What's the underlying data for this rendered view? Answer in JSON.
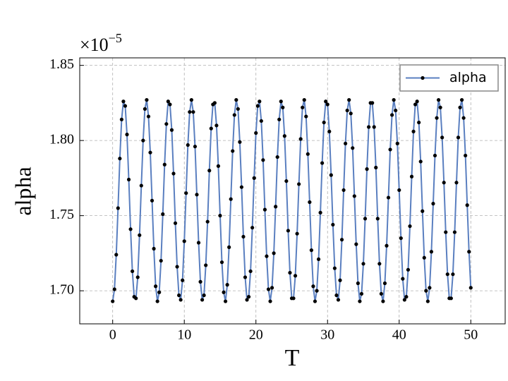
{
  "chart_data": {
    "type": "line",
    "xlabel": "T",
    "ylabel": "alpha",
    "y_offset_label": "×10",
    "y_offset_exponent": "−5",
    "x": [
      0,
      0.25,
      0.5,
      0.75,
      1,
      1.25,
      1.5,
      1.75,
      2,
      2.25,
      2.5,
      2.75,
      3,
      3.25,
      3.5,
      3.75,
      4,
      4.25,
      4.5,
      4.75,
      5,
      5.25,
      5.5,
      5.75,
      6,
      6.25,
      6.5,
      6.75,
      7,
      7.25,
      7.5,
      7.75,
      8,
      8.25,
      8.5,
      8.75,
      9,
      9.25,
      9.5,
      9.75,
      10,
      10.25,
      10.5,
      10.75,
      11,
      11.25,
      11.5,
      11.75,
      12,
      12.25,
      12.5,
      12.75,
      13,
      13.25,
      13.5,
      13.75,
      14,
      14.25,
      14.5,
      14.75,
      15,
      15.25,
      15.5,
      15.75,
      16,
      16.25,
      16.5,
      16.75,
      17,
      17.25,
      17.5,
      17.75,
      18,
      18.25,
      18.5,
      18.75,
      19,
      19.25,
      19.5,
      19.75,
      20,
      20.25,
      20.5,
      20.75,
      21,
      21.25,
      21.5,
      21.75,
      22,
      22.25,
      22.5,
      22.75,
      23,
      23.25,
      23.5,
      23.75,
      24,
      24.25,
      24.5,
      24.75,
      25,
      25.25,
      25.5,
      25.75,
      26,
      26.25,
      26.5,
      26.75,
      27,
      27.25,
      27.5,
      27.75,
      28,
      28.25,
      28.5,
      28.75,
      29,
      29.25,
      29.5,
      29.75,
      30,
      30.25,
      30.5,
      30.75,
      31,
      31.25,
      31.5,
      31.75,
      32,
      32.25,
      32.5,
      32.75,
      33,
      33.25,
      33.5,
      33.75,
      34,
      34.25,
      34.5,
      34.75,
      35,
      35.25,
      35.5,
      35.75,
      36,
      36.25,
      36.5,
      36.75,
      37,
      37.25,
      37.5,
      37.75,
      38,
      38.25,
      38.5,
      38.75,
      39,
      39.25,
      39.5,
      39.75,
      40,
      40.25,
      40.5,
      40.75,
      41,
      41.25,
      41.5,
      41.75,
      42,
      42.25,
      42.5,
      42.75,
      43,
      43.25,
      43.5,
      43.75,
      44,
      44.25,
      44.5,
      44.75,
      45,
      45.25,
      45.5,
      45.75,
      46,
      46.25,
      46.5,
      46.75,
      47,
      47.25,
      47.5,
      47.75,
      48,
      48.25,
      48.5,
      48.75,
      49,
      49.25,
      49.5,
      49.75,
      50
    ],
    "series": [
      {
        "name": "alpha",
        "color": "#5a7fc0",
        "marker_color": "#000000",
        "values": [
          1.693,
          1.701,
          1.724,
          1.755,
          1.788,
          1.814,
          1.826,
          1.823,
          1.804,
          1.774,
          1.741,
          1.713,
          1.696,
          1.695,
          1.709,
          1.737,
          1.77,
          1.8,
          1.821,
          1.827,
          1.816,
          1.792,
          1.76,
          1.728,
          1.703,
          1.693,
          1.699,
          1.72,
          1.751,
          1.784,
          1.811,
          1.826,
          1.824,
          1.807,
          1.778,
          1.745,
          1.716,
          1.697,
          1.694,
          1.707,
          1.733,
          1.765,
          1.797,
          1.819,
          1.827,
          1.819,
          1.796,
          1.764,
          1.732,
          1.706,
          1.694,
          1.697,
          1.717,
          1.746,
          1.78,
          1.808,
          1.824,
          1.825,
          1.81,
          1.783,
          1.75,
          1.719,
          1.699,
          1.693,
          1.704,
          1.729,
          1.761,
          1.793,
          1.817,
          1.827,
          1.821,
          1.799,
          1.769,
          1.736,
          1.709,
          1.694,
          1.696,
          1.713,
          1.742,
          1.775,
          1.805,
          1.823,
          1.826,
          1.813,
          1.787,
          1.754,
          1.723,
          1.701,
          1.693,
          1.702,
          1.725,
          1.756,
          1.789,
          1.814,
          1.826,
          1.822,
          1.803,
          1.773,
          1.74,
          1.712,
          1.695,
          1.695,
          1.71,
          1.738,
          1.771,
          1.801,
          1.822,
          1.827,
          1.816,
          1.791,
          1.759,
          1.727,
          1.703,
          1.693,
          1.7,
          1.721,
          1.752,
          1.785,
          1.812,
          1.826,
          1.824,
          1.806,
          1.777,
          1.744,
          1.715,
          1.697,
          1.694,
          1.707,
          1.734,
          1.767,
          1.798,
          1.82,
          1.827,
          1.818,
          1.795,
          1.763,
          1.731,
          1.705,
          1.693,
          1.698,
          1.718,
          1.748,
          1.781,
          1.809,
          1.825,
          1.825,
          1.809,
          1.782,
          1.748,
          1.718,
          1.698,
          1.693,
          1.705,
          1.73,
          1.762,
          1.794,
          1.817,
          1.827,
          1.82,
          1.798,
          1.767,
          1.735,
          1.708,
          1.694,
          1.696,
          1.714,
          1.743,
          1.776,
          1.806,
          1.824,
          1.826,
          1.812,
          1.786,
          1.753,
          1.722,
          1.7,
          1.693,
          1.702,
          1.726,
          1.758,
          1.79,
          1.815,
          1.827,
          1.822,
          1.802,
          1.772,
          1.739,
          1.711,
          1.695,
          1.695,
          1.711,
          1.739,
          1.772,
          1.802,
          1.822,
          1.827,
          1.815,
          1.79,
          1.757,
          1.726,
          1.702
        ]
      }
    ],
    "xlim": [
      -4.6,
      54.8
    ],
    "ylim": [
      1.678,
      1.855
    ],
    "xticks": [
      0,
      10,
      20,
      30,
      40,
      50
    ],
    "yticks": [
      {
        "value": 1.7,
        "label": "1.70"
      },
      1.75,
      {
        "value": 1.8,
        "label": "1.80"
      },
      1.85
    ],
    "grid": true,
    "legend": "upper right"
  }
}
